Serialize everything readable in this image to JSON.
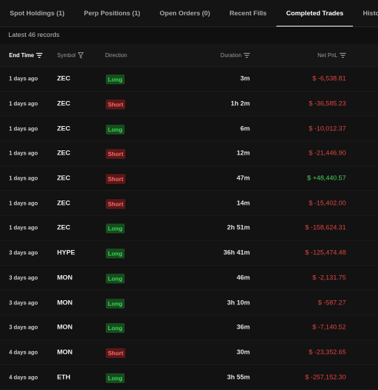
{
  "tabs": [
    {
      "label": "Spot Holdings (1)",
      "active": false
    },
    {
      "label": "Perp Positions (1)",
      "active": false
    },
    {
      "label": "Open Orders (0)",
      "active": false
    },
    {
      "label": "Recent Fills",
      "active": false
    },
    {
      "label": "Completed Trades",
      "active": true
    },
    {
      "label": "Historical O",
      "active": false
    }
  ],
  "records_label": "Latest 46 records",
  "columns": {
    "end_time": "End Time",
    "symbol": "Symbol",
    "direction": "Direction",
    "duration": "Duration",
    "net_pnl": "Net PnL"
  },
  "icons": {
    "sort": "sort-lines-icon",
    "filter": "funnel-filter-icon"
  },
  "colors": {
    "long_text": "#41d35a",
    "long_bg": "#164d1e",
    "short_text": "#f07070",
    "short_bg": "#5e1616",
    "pnl_negative": "#e0453f",
    "pnl_positive": "#44d25c"
  },
  "rows": [
    {
      "time": "1 days ago",
      "symbol": "ZEC",
      "direction": "Long",
      "duration": "3m",
      "pnl": "$ -6,538.81",
      "sign": "neg"
    },
    {
      "time": "1 days ago",
      "symbol": "ZEC",
      "direction": "Short",
      "duration": "1h 2m",
      "pnl": "$ -36,585.23",
      "sign": "neg"
    },
    {
      "time": "1 days ago",
      "symbol": "ZEC",
      "direction": "Long",
      "duration": "6m",
      "pnl": "$ -10,012.37",
      "sign": "neg"
    },
    {
      "time": "1 days ago",
      "symbol": "ZEC",
      "direction": "Short",
      "duration": "12m",
      "pnl": "$ -21,446.90",
      "sign": "neg"
    },
    {
      "time": "1 days ago",
      "symbol": "ZEC",
      "direction": "Short",
      "duration": "47m",
      "pnl": "$ +48,440.57",
      "sign": "pos"
    },
    {
      "time": "1 days ago",
      "symbol": "ZEC",
      "direction": "Short",
      "duration": "14m",
      "pnl": "$ -15,402.00",
      "sign": "neg"
    },
    {
      "time": "1 days ago",
      "symbol": "ZEC",
      "direction": "Long",
      "duration": "2h 51m",
      "pnl": "$ -158,624.31",
      "sign": "neg"
    },
    {
      "time": "3 days ago",
      "symbol": "HYPE",
      "direction": "Long",
      "duration": "36h 41m",
      "pnl": "$ -125,474.48",
      "sign": "neg"
    },
    {
      "time": "3 days ago",
      "symbol": "MON",
      "direction": "Long",
      "duration": "46m",
      "pnl": "$ -2,131.75",
      "sign": "neg"
    },
    {
      "time": "3 days ago",
      "symbol": "MON",
      "direction": "Long",
      "duration": "3h 10m",
      "pnl": "$ -587.27",
      "sign": "neg"
    },
    {
      "time": "3 days ago",
      "symbol": "MON",
      "direction": "Long",
      "duration": "36m",
      "pnl": "$ -7,140.52",
      "sign": "neg"
    },
    {
      "time": "4 days ago",
      "symbol": "MON",
      "direction": "Short",
      "duration": "30m",
      "pnl": "$ -23,352.65",
      "sign": "neg"
    },
    {
      "time": "4 days ago",
      "symbol": "ETH",
      "direction": "Long",
      "duration": "3h 55m",
      "pnl": "$ -257,152.30",
      "sign": "neg"
    }
  ]
}
